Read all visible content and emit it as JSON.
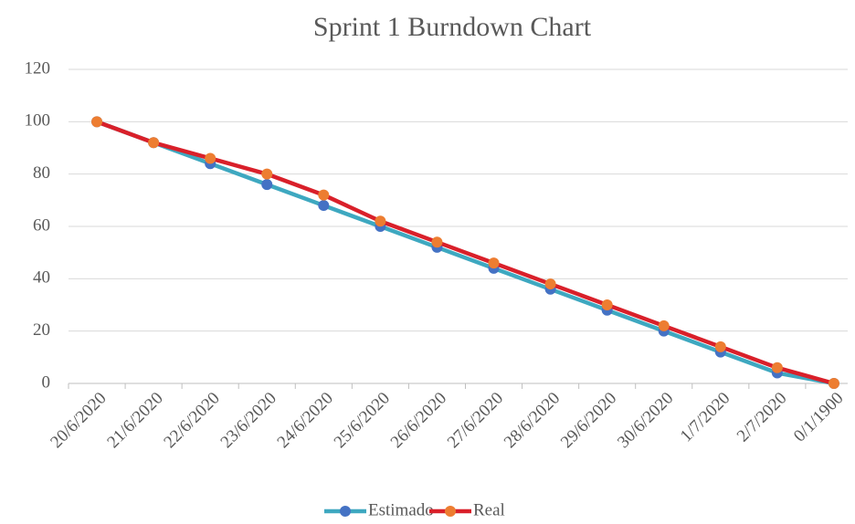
{
  "chart_data": {
    "type": "line",
    "title": "Sprint 1 Burndown Chart",
    "categories": [
      "20/6/2020",
      "21/6/2020",
      "22/6/2020",
      "23/6/2020",
      "24/6/2020",
      "25/6/2020",
      "26/6/2020",
      "27/6/2020",
      "28/6/2020",
      "29/6/2020",
      "30/6/2020",
      "1/7/2020",
      "2/7/2020",
      "0/1/1900"
    ],
    "series": [
      {
        "name": "Estimado",
        "color": "#3ea8c0",
        "marker_color": "#4472c4",
        "values": [
          100,
          92,
          84,
          76,
          68,
          60,
          52,
          44,
          36,
          28,
          20,
          12,
          4,
          0
        ]
      },
      {
        "name": "Real",
        "color": "#d9202a",
        "marker_color": "#ed7d31",
        "values": [
          100,
          92,
          86,
          80,
          72,
          62,
          54,
          46,
          38,
          30,
          22,
          14,
          6,
          0
        ]
      }
    ],
    "ylim": [
      0,
      120
    ],
    "yticks": [
      0,
      20,
      40,
      60,
      80,
      100,
      120
    ],
    "grid": true,
    "legend": "bottom"
  }
}
